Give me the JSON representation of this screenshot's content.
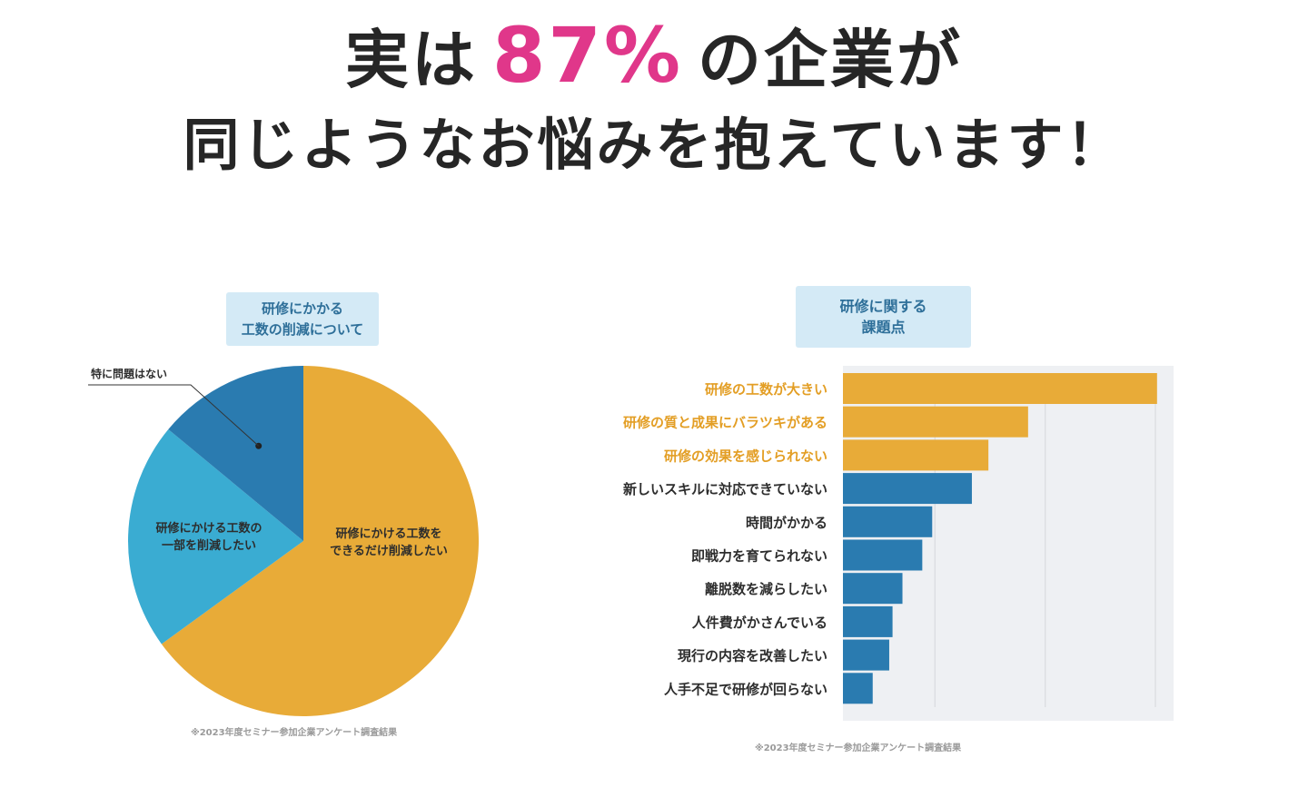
{
  "headline": {
    "line1_prefix": "実は",
    "line1_pct": "87%",
    "line1_suffix": "の企業が",
    "line2": "同じようなお悩みを抱えています！"
  },
  "colors": {
    "accent_pink": "#e0378a",
    "orange": "#e8ab38",
    "blue_dark": "#2a7bb0",
    "blue_light": "#3aacd2",
    "badge_bg": "#d4eaf6",
    "badge_text": "#2e6f99",
    "plot_bg": "#eef0f3"
  },
  "chart_data": [
    {
      "type": "pie",
      "title_lines": [
        "研修にかかる",
        "工数の削減について"
      ],
      "slices": [
        {
          "label_lines": [
            "研修にかける工数を",
            "できるだけ削減したい"
          ],
          "value": 65,
          "color": "#e8ab38"
        },
        {
          "label_lines": [
            "研修にかける工数の",
            "一部を削減したい"
          ],
          "value": 21,
          "color": "#3aacd2"
        },
        {
          "label_lines": [
            "特に問題はない"
          ],
          "value": 14,
          "color": "#2a7bb0",
          "callout": true
        }
      ],
      "note": "※2023年度セミナー参加企業アンケート調査結果"
    },
    {
      "type": "bar",
      "orientation": "horizontal",
      "title_lines": [
        "研修に関する",
        "課題点"
      ],
      "xlim": [
        0,
        100
      ],
      "grid": true,
      "categories": [
        "研修の工数が大きい",
        "研修の質と成果にバラツキがある",
        "研修の効果を感じられない",
        "新しいスキルに対応できていない",
        "時間がかかる",
        "即戦力を育てられない",
        "離脱数を減らしたい",
        "人件費がかさんでいる",
        "現行の内容を改善したい",
        "人手不足で研修が回らない"
      ],
      "values": [
        95,
        56,
        44,
        39,
        27,
        24,
        18,
        15,
        14,
        9
      ],
      "highlight": [
        true,
        true,
        true,
        false,
        false,
        false,
        false,
        false,
        false,
        false
      ],
      "note": "※2023年度セミナー参加企業アンケート調査結果"
    }
  ]
}
